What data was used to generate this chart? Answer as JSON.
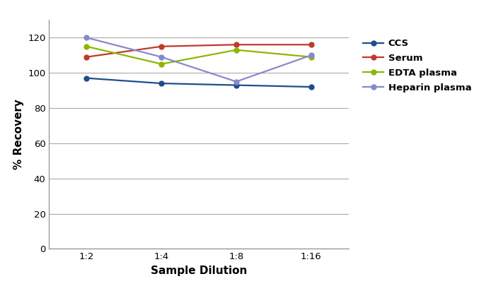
{
  "xlabel": "Sample Dilution",
  "ylabel": "% Recovery",
  "x_labels": [
    "1:2",
    "1:4",
    "1:8",
    "1:16"
  ],
  "x_positions": [
    0,
    1,
    2,
    3
  ],
  "ylim": [
    0,
    130
  ],
  "yticks": [
    0,
    20,
    40,
    60,
    80,
    100,
    120
  ],
  "series": [
    {
      "label": "CCS",
      "color": "#1e4e8c",
      "values": [
        97,
        94,
        93,
        92
      ]
    },
    {
      "label": "Serum",
      "color": "#c0392b",
      "values": [
        109,
        115,
        116,
        116
      ]
    },
    {
      "label": "EDTA plasma",
      "color": "#8db600",
      "values": [
        115,
        105,
        113,
        109
      ]
    },
    {
      "label": "Heparin plasma",
      "color": "#8888cc",
      "values": [
        120,
        109,
        95,
        110
      ]
    }
  ],
  "background_color": "#ffffff",
  "grid_color": "#aaaaaa",
  "marker": "o",
  "markersize": 5,
  "linewidth": 1.6,
  "fig_width": 6.94,
  "fig_height": 4.05,
  "dpi": 100
}
